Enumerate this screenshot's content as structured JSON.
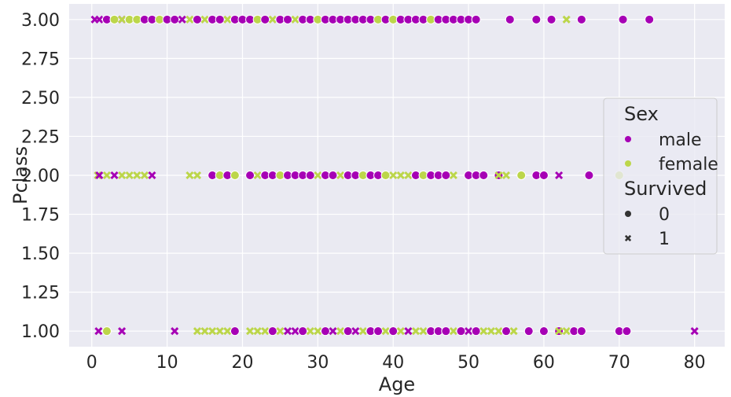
{
  "chart_data": {
    "type": "scatter",
    "xlabel": "Age",
    "ylabel": "Pclass",
    "xlim": [
      -3,
      84
    ],
    "ylim": [
      0.9,
      3.1
    ],
    "xticks": [
      0,
      10,
      20,
      30,
      40,
      50,
      60,
      70,
      80
    ],
    "yticks": [
      1.0,
      1.25,
      1.5,
      1.75,
      2.0,
      2.25,
      2.5,
      2.75,
      3.0
    ],
    "xtick_labels": [
      "0",
      "10",
      "20",
      "30",
      "40",
      "50",
      "60",
      "70",
      "80"
    ],
    "ytick_labels": [
      "1.00",
      "1.25",
      "1.50",
      "1.75",
      "2.00",
      "2.25",
      "2.50",
      "2.75",
      "3.00"
    ],
    "grid": true,
    "legend": {
      "placement": "center-right",
      "hue_title": "Sex",
      "hue_entries": [
        {
          "label": "male",
          "color": "#a600b5"
        },
        {
          "label": "female",
          "color": "#bcd64a"
        }
      ],
      "style_title": "Survived",
      "style_entries": [
        {
          "label": "0",
          "marker": "circle"
        },
        {
          "label": "1",
          "marker": "x"
        }
      ]
    },
    "colors": {
      "male": "#a600b5",
      "female": "#bcd64a",
      "background": "#eaeaf2",
      "grid": "#ffffff"
    },
    "points": [
      {
        "x": 0.4,
        "y": 3,
        "sex": "male",
        "survived": 1
      },
      {
        "x": 1,
        "y": 3,
        "sex": "male",
        "survived": 1
      },
      {
        "x": 2,
        "y": 3,
        "sex": "male",
        "survived": 0
      },
      {
        "x": 3,
        "y": 3,
        "sex": "female",
        "survived": 0
      },
      {
        "x": 4,
        "y": 3,
        "sex": "male",
        "survived": 1
      },
      {
        "x": 4,
        "y": 3,
        "sex": "female",
        "survived": 1
      },
      {
        "x": 5,
        "y": 3,
        "sex": "female",
        "survived": 0
      },
      {
        "x": 6,
        "y": 3,
        "sex": "female",
        "survived": 0
      },
      {
        "x": 7,
        "y": 3,
        "sex": "male",
        "survived": 0
      },
      {
        "x": 8,
        "y": 3,
        "sex": "male",
        "survived": 0
      },
      {
        "x": 9,
        "y": 3,
        "sex": "female",
        "survived": 0
      },
      {
        "x": 10,
        "y": 3,
        "sex": "male",
        "survived": 0
      },
      {
        "x": 11,
        "y": 3,
        "sex": "male",
        "survived": 0
      },
      {
        "x": 12,
        "y": 3,
        "sex": "male",
        "survived": 1
      },
      {
        "x": 13,
        "y": 3,
        "sex": "female",
        "survived": 1
      },
      {
        "x": 14,
        "y": 3,
        "sex": "male",
        "survived": 0
      },
      {
        "x": 15,
        "y": 3,
        "sex": "female",
        "survived": 1
      },
      {
        "x": 16,
        "y": 3,
        "sex": "male",
        "survived": 0
      },
      {
        "x": 17,
        "y": 3,
        "sex": "male",
        "survived": 0
      },
      {
        "x": 18,
        "y": 3,
        "sex": "female",
        "survived": 1
      },
      {
        "x": 19,
        "y": 3,
        "sex": "male",
        "survived": 0
      },
      {
        "x": 20,
        "y": 3,
        "sex": "male",
        "survived": 0
      },
      {
        "x": 21,
        "y": 3,
        "sex": "male",
        "survived": 0
      },
      {
        "x": 22,
        "y": 3,
        "sex": "female",
        "survived": 0
      },
      {
        "x": 23,
        "y": 3,
        "sex": "male",
        "survived": 0
      },
      {
        "x": 24,
        "y": 3,
        "sex": "female",
        "survived": 1
      },
      {
        "x": 25,
        "y": 3,
        "sex": "male",
        "survived": 0
      },
      {
        "x": 26,
        "y": 3,
        "sex": "male",
        "survived": 0
      },
      {
        "x": 27,
        "y": 3,
        "sex": "female",
        "survived": 1
      },
      {
        "x": 28,
        "y": 3,
        "sex": "male",
        "survived": 0
      },
      {
        "x": 29,
        "y": 3,
        "sex": "male",
        "survived": 0
      },
      {
        "x": 30,
        "y": 3,
        "sex": "female",
        "survived": 0
      },
      {
        "x": 31,
        "y": 3,
        "sex": "male",
        "survived": 0
      },
      {
        "x": 32,
        "y": 3,
        "sex": "male",
        "survived": 0
      },
      {
        "x": 33,
        "y": 3,
        "sex": "male",
        "survived": 0
      },
      {
        "x": 34,
        "y": 3,
        "sex": "male",
        "survived": 0
      },
      {
        "x": 35,
        "y": 3,
        "sex": "male",
        "survived": 0
      },
      {
        "x": 36,
        "y": 3,
        "sex": "male",
        "survived": 0
      },
      {
        "x": 37,
        "y": 3,
        "sex": "male",
        "survived": 0
      },
      {
        "x": 38,
        "y": 3,
        "sex": "female",
        "survived": 0
      },
      {
        "x": 39,
        "y": 3,
        "sex": "male",
        "survived": 0
      },
      {
        "x": 40,
        "y": 3,
        "sex": "female",
        "survived": 0
      },
      {
        "x": 41,
        "y": 3,
        "sex": "male",
        "survived": 0
      },
      {
        "x": 42,
        "y": 3,
        "sex": "male",
        "survived": 0
      },
      {
        "x": 43,
        "y": 3,
        "sex": "male",
        "survived": 0
      },
      {
        "x": 44,
        "y": 3,
        "sex": "male",
        "survived": 0
      },
      {
        "x": 45,
        "y": 3,
        "sex": "female",
        "survived": 0
      },
      {
        "x": 46,
        "y": 3,
        "sex": "male",
        "survived": 0
      },
      {
        "x": 47,
        "y": 3,
        "sex": "male",
        "survived": 0
      },
      {
        "x": 48,
        "y": 3,
        "sex": "male",
        "survived": 0
      },
      {
        "x": 49,
        "y": 3,
        "sex": "male",
        "survived": 0
      },
      {
        "x": 50,
        "y": 3,
        "sex": "male",
        "survived": 0
      },
      {
        "x": 51,
        "y": 3,
        "sex": "male",
        "survived": 0
      },
      {
        "x": 55.5,
        "y": 3,
        "sex": "male",
        "survived": 0
      },
      {
        "x": 59,
        "y": 3,
        "sex": "male",
        "survived": 0
      },
      {
        "x": 61,
        "y": 3,
        "sex": "male",
        "survived": 0
      },
      {
        "x": 63,
        "y": 3,
        "sex": "female",
        "survived": 1
      },
      {
        "x": 65,
        "y": 3,
        "sex": "male",
        "survived": 0
      },
      {
        "x": 70.5,
        "y": 3,
        "sex": "male",
        "survived": 0
      },
      {
        "x": 74,
        "y": 3,
        "sex": "male",
        "survived": 0
      },
      {
        "x": 0.8,
        "y": 2,
        "sex": "female",
        "survived": 1
      },
      {
        "x": 1,
        "y": 2,
        "sex": "male",
        "survived": 1
      },
      {
        "x": 2,
        "y": 2,
        "sex": "female",
        "survived": 1
      },
      {
        "x": 3,
        "y": 2,
        "sex": "male",
        "survived": 1
      },
      {
        "x": 4,
        "y": 2,
        "sex": "female",
        "survived": 1
      },
      {
        "x": 5,
        "y": 2,
        "sex": "female",
        "survived": 1
      },
      {
        "x": 6,
        "y": 2,
        "sex": "female",
        "survived": 1
      },
      {
        "x": 7,
        "y": 2,
        "sex": "female",
        "survived": 1
      },
      {
        "x": 8,
        "y": 2,
        "sex": "male",
        "survived": 1
      },
      {
        "x": 13,
        "y": 2,
        "sex": "female",
        "survived": 1
      },
      {
        "x": 14,
        "y": 2,
        "sex": "female",
        "survived": 1
      },
      {
        "x": 16,
        "y": 2,
        "sex": "male",
        "survived": 0
      },
      {
        "x": 17,
        "y": 2,
        "sex": "female",
        "survived": 0
      },
      {
        "x": 18,
        "y": 2,
        "sex": "male",
        "survived": 0
      },
      {
        "x": 19,
        "y": 2,
        "sex": "female",
        "survived": 0
      },
      {
        "x": 21,
        "y": 2,
        "sex": "male",
        "survived": 0
      },
      {
        "x": 22,
        "y": 2,
        "sex": "female",
        "survived": 1
      },
      {
        "x": 23,
        "y": 2,
        "sex": "male",
        "survived": 0
      },
      {
        "x": 24,
        "y": 2,
        "sex": "male",
        "survived": 0
      },
      {
        "x": 25,
        "y": 2,
        "sex": "female",
        "survived": 0
      },
      {
        "x": 26,
        "y": 2,
        "sex": "male",
        "survived": 0
      },
      {
        "x": 27,
        "y": 2,
        "sex": "male",
        "survived": 0
      },
      {
        "x": 28,
        "y": 2,
        "sex": "male",
        "survived": 0
      },
      {
        "x": 29,
        "y": 2,
        "sex": "male",
        "survived": 0
      },
      {
        "x": 30,
        "y": 2,
        "sex": "female",
        "survived": 1
      },
      {
        "x": 31,
        "y": 2,
        "sex": "male",
        "survived": 0
      },
      {
        "x": 32,
        "y": 2,
        "sex": "male",
        "survived": 0
      },
      {
        "x": 33,
        "y": 2,
        "sex": "female",
        "survived": 1
      },
      {
        "x": 34,
        "y": 2,
        "sex": "male",
        "survived": 0
      },
      {
        "x": 35,
        "y": 2,
        "sex": "male",
        "survived": 0
      },
      {
        "x": 36,
        "y": 2,
        "sex": "female",
        "survived": 0
      },
      {
        "x": 37,
        "y": 2,
        "sex": "male",
        "survived": 0
      },
      {
        "x": 38,
        "y": 2,
        "sex": "male",
        "survived": 0
      },
      {
        "x": 39,
        "y": 2,
        "sex": "female",
        "survived": 0
      },
      {
        "x": 40,
        "y": 2,
        "sex": "female",
        "survived": 1
      },
      {
        "x": 41,
        "y": 2,
        "sex": "female",
        "survived": 1
      },
      {
        "x": 42,
        "y": 2,
        "sex": "female",
        "survived": 1
      },
      {
        "x": 43,
        "y": 2,
        "sex": "male",
        "survived": 0
      },
      {
        "x": 44,
        "y": 2,
        "sex": "female",
        "survived": 0
      },
      {
        "x": 45,
        "y": 2,
        "sex": "male",
        "survived": 0
      },
      {
        "x": 46,
        "y": 2,
        "sex": "male",
        "survived": 0
      },
      {
        "x": 47,
        "y": 2,
        "sex": "male",
        "survived": 0
      },
      {
        "x": 48,
        "y": 2,
        "sex": "female",
        "survived": 1
      },
      {
        "x": 50,
        "y": 2,
        "sex": "male",
        "survived": 0
      },
      {
        "x": 51,
        "y": 2,
        "sex": "male",
        "survived": 0
      },
      {
        "x": 52,
        "y": 2,
        "sex": "male",
        "survived": 0
      },
      {
        "x": 54,
        "y": 2,
        "sex": "male",
        "survived": 0
      },
      {
        "x": 54,
        "y": 2,
        "sex": "female",
        "survived": 1
      },
      {
        "x": 55,
        "y": 2,
        "sex": "female",
        "survived": 1
      },
      {
        "x": 57,
        "y": 2,
        "sex": "female",
        "survived": 0
      },
      {
        "x": 59,
        "y": 2,
        "sex": "male",
        "survived": 0
      },
      {
        "x": 60,
        "y": 2,
        "sex": "male",
        "survived": 0
      },
      {
        "x": 62,
        "y": 2,
        "sex": "male",
        "survived": 1
      },
      {
        "x": 66,
        "y": 2,
        "sex": "male",
        "survived": 0
      },
      {
        "x": 70,
        "y": 2,
        "sex": "female",
        "survived": 0
      },
      {
        "x": 0.9,
        "y": 1,
        "sex": "male",
        "survived": 1
      },
      {
        "x": 2,
        "y": 1,
        "sex": "female",
        "survived": 0
      },
      {
        "x": 4,
        "y": 1,
        "sex": "male",
        "survived": 1
      },
      {
        "x": 11,
        "y": 1,
        "sex": "male",
        "survived": 1
      },
      {
        "x": 14,
        "y": 1,
        "sex": "female",
        "survived": 1
      },
      {
        "x": 15,
        "y": 1,
        "sex": "female",
        "survived": 1
      },
      {
        "x": 16,
        "y": 1,
        "sex": "female",
        "survived": 1
      },
      {
        "x": 17,
        "y": 1,
        "sex": "female",
        "survived": 1
      },
      {
        "x": 18,
        "y": 1,
        "sex": "female",
        "survived": 1
      },
      {
        "x": 19,
        "y": 1,
        "sex": "male",
        "survived": 0
      },
      {
        "x": 21,
        "y": 1,
        "sex": "female",
        "survived": 1
      },
      {
        "x": 22,
        "y": 1,
        "sex": "female",
        "survived": 1
      },
      {
        "x": 23,
        "y": 1,
        "sex": "female",
        "survived": 1
      },
      {
        "x": 24,
        "y": 1,
        "sex": "male",
        "survived": 0
      },
      {
        "x": 25,
        "y": 1,
        "sex": "female",
        "survived": 1
      },
      {
        "x": 26,
        "y": 1,
        "sex": "male",
        "survived": 1
      },
      {
        "x": 27,
        "y": 1,
        "sex": "male",
        "survived": 1
      },
      {
        "x": 28,
        "y": 1,
        "sex": "male",
        "survived": 0
      },
      {
        "x": 29,
        "y": 1,
        "sex": "female",
        "survived": 1
      },
      {
        "x": 30,
        "y": 1,
        "sex": "female",
        "survived": 1
      },
      {
        "x": 31,
        "y": 1,
        "sex": "male",
        "survived": 0
      },
      {
        "x": 32,
        "y": 1,
        "sex": "male",
        "survived": 1
      },
      {
        "x": 33,
        "y": 1,
        "sex": "female",
        "survived": 1
      },
      {
        "x": 34,
        "y": 1,
        "sex": "male",
        "survived": 0
      },
      {
        "x": 35,
        "y": 1,
        "sex": "male",
        "survived": 1
      },
      {
        "x": 36,
        "y": 1,
        "sex": "female",
        "survived": 1
      },
      {
        "x": 37,
        "y": 1,
        "sex": "male",
        "survived": 0
      },
      {
        "x": 38,
        "y": 1,
        "sex": "male",
        "survived": 0
      },
      {
        "x": 39,
        "y": 1,
        "sex": "female",
        "survived": 1
      },
      {
        "x": 40,
        "y": 1,
        "sex": "male",
        "survived": 0
      },
      {
        "x": 41,
        "y": 1,
        "sex": "female",
        "survived": 1
      },
      {
        "x": 42,
        "y": 1,
        "sex": "male",
        "survived": 1
      },
      {
        "x": 43,
        "y": 1,
        "sex": "female",
        "survived": 1
      },
      {
        "x": 44,
        "y": 1,
        "sex": "female",
        "survived": 1
      },
      {
        "x": 45,
        "y": 1,
        "sex": "male",
        "survived": 0
      },
      {
        "x": 46,
        "y": 1,
        "sex": "male",
        "survived": 0
      },
      {
        "x": 47,
        "y": 1,
        "sex": "male",
        "survived": 0
      },
      {
        "x": 48,
        "y": 1,
        "sex": "female",
        "survived": 1
      },
      {
        "x": 49,
        "y": 1,
        "sex": "male",
        "survived": 0
      },
      {
        "x": 50,
        "y": 1,
        "sex": "male",
        "survived": 1
      },
      {
        "x": 51,
        "y": 1,
        "sex": "male",
        "survived": 0
      },
      {
        "x": 52,
        "y": 1,
        "sex": "female",
        "survived": 1
      },
      {
        "x": 53,
        "y": 1,
        "sex": "female",
        "survived": 1
      },
      {
        "x": 54,
        "y": 1,
        "sex": "female",
        "survived": 1
      },
      {
        "x": 55,
        "y": 1,
        "sex": "male",
        "survived": 0
      },
      {
        "x": 56,
        "y": 1,
        "sex": "female",
        "survived": 1
      },
      {
        "x": 58,
        "y": 1,
        "sex": "male",
        "survived": 0
      },
      {
        "x": 60,
        "y": 1,
        "sex": "male",
        "survived": 0
      },
      {
        "x": 62,
        "y": 1,
        "sex": "male",
        "survived": 0
      },
      {
        "x": 62,
        "y": 1,
        "sex": "female",
        "survived": 1
      },
      {
        "x": 63,
        "y": 1,
        "sex": "female",
        "survived": 1
      },
      {
        "x": 64,
        "y": 1,
        "sex": "male",
        "survived": 0
      },
      {
        "x": 65,
        "y": 1,
        "sex": "male",
        "survived": 0
      },
      {
        "x": 70,
        "y": 1,
        "sex": "male",
        "survived": 0
      },
      {
        "x": 71,
        "y": 1,
        "sex": "male",
        "survived": 0
      },
      {
        "x": 80,
        "y": 1,
        "sex": "male",
        "survived": 1
      }
    ]
  }
}
